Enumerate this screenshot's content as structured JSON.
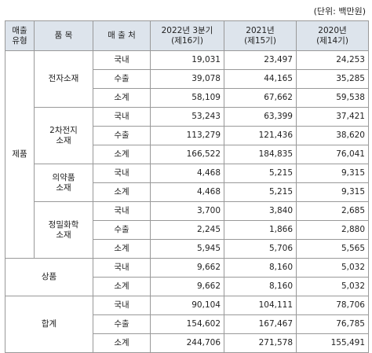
{
  "unit": "(단위: 백만원)",
  "header": {
    "type": "매출\n유형",
    "item": "품 목",
    "dest": "매 출 처",
    "col1": "2022년 3분기\n(제16기)",
    "col2": "2021년\n(제15기)",
    "col3": "2020년\n(제14기)"
  },
  "groups": [
    {
      "type": "제품",
      "item": "전자소재",
      "rows": [
        {
          "dest": "국내",
          "v1": "19,031",
          "v2": "23,497",
          "v3": "24,253"
        },
        {
          "dest": "수출",
          "v1": "39,078",
          "v2": "44,165",
          "v3": "35,285"
        },
        {
          "dest": "소계",
          "v1": "58,109",
          "v2": "67,662",
          "v3": "59,538"
        }
      ]
    },
    {
      "item": "2차전지\n소재",
      "rows": [
        {
          "dest": "국내",
          "v1": "53,243",
          "v2": "63,399",
          "v3": "37,421"
        },
        {
          "dest": "수출",
          "v1": "113,279",
          "v2": "121,436",
          "v3": "38,620"
        },
        {
          "dest": "소계",
          "v1": "166,522",
          "v2": "184,835",
          "v3": "76,041"
        }
      ]
    },
    {
      "item": "의약품\n소재",
      "rows": [
        {
          "dest": "국내",
          "v1": "4,468",
          "v2": "5,215",
          "v3": "9,315"
        },
        {
          "dest": "소계",
          "v1": "4,468",
          "v2": "5,215",
          "v3": "9,315"
        }
      ]
    },
    {
      "item": "정밀화학\n소재",
      "rows": [
        {
          "dest": "국내",
          "v1": "3,700",
          "v2": "3,840",
          "v3": "2,685"
        },
        {
          "dest": "수출",
          "v1": "2,245",
          "v2": "1,866",
          "v3": "2,880"
        },
        {
          "dest": "소계",
          "v1": "5,945",
          "v2": "5,706",
          "v3": "5,565"
        }
      ]
    },
    {
      "merged": "상품",
      "rows": [
        {
          "dest": "국내",
          "v1": "9,662",
          "v2": "8,160",
          "v3": "5,032"
        },
        {
          "dest": "소계",
          "v1": "9,662",
          "v2": "8,160",
          "v3": "5,032"
        }
      ]
    },
    {
      "merged": "합계",
      "rows": [
        {
          "dest": "국내",
          "v1": "90,104",
          "v2": "104,111",
          "v3": "78,706"
        },
        {
          "dest": "수출",
          "v1": "154,602",
          "v2": "167,467",
          "v3": "76,785"
        },
        {
          "dest": "소계",
          "v1": "244,706",
          "v2": "271,578",
          "v3": "155,491"
        }
      ]
    }
  ]
}
